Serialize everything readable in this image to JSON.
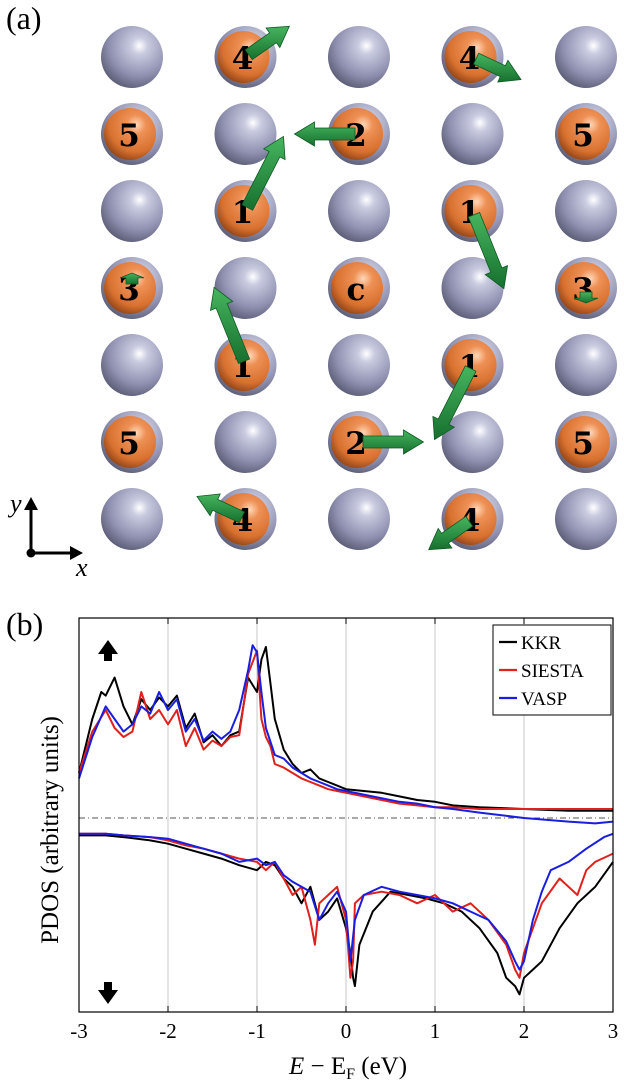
{
  "panel_a": {
    "label": "(a)",
    "axis_x": "x",
    "axis_y": "y",
    "grid_cols": 5,
    "grid_rows": 7,
    "colors": {
      "host_atom": "#8f90b0",
      "impurity_atom": "#dd7a3c",
      "moment_arrow": "#1f8a3a"
    },
    "sites": [
      {
        "col": 0,
        "row": 0,
        "type": "host",
        "label": ""
      },
      {
        "col": 1,
        "row": 0,
        "type": "impurity",
        "label": "4",
        "arrow_angle": 35,
        "arrow_len": 0.9
      },
      {
        "col": 2,
        "row": 0,
        "type": "host",
        "label": ""
      },
      {
        "col": 3,
        "row": 0,
        "type": "impurity",
        "label": "4",
        "arrow_angle": -25,
        "arrow_len": 0.9
      },
      {
        "col": 4,
        "row": 0,
        "type": "host",
        "label": ""
      },
      {
        "col": 0,
        "row": 1,
        "type": "impurity",
        "label": "5"
      },
      {
        "col": 1,
        "row": 1,
        "type": "host",
        "label": ""
      },
      {
        "col": 2,
        "row": 1,
        "type": "impurity",
        "label": "2",
        "arrow_angle": 180,
        "arrow_len": 1.1
      },
      {
        "col": 3,
        "row": 1,
        "type": "host",
        "label": ""
      },
      {
        "col": 4,
        "row": 1,
        "type": "impurity",
        "label": "5"
      },
      {
        "col": 0,
        "row": 2,
        "type": "host",
        "label": ""
      },
      {
        "col": 1,
        "row": 2,
        "type": "impurity",
        "label": "1",
        "arrow_angle": 63,
        "arrow_len": 1.45
      },
      {
        "col": 2,
        "row": 2,
        "type": "host",
        "label": ""
      },
      {
        "col": 3,
        "row": 2,
        "type": "impurity",
        "label": "1",
        "arrow_angle": -68,
        "arrow_len": 1.45
      },
      {
        "col": 4,
        "row": 2,
        "type": "host",
        "label": ""
      },
      {
        "col": 0,
        "row": 3,
        "type": "impurity",
        "label": "3",
        "arrow_angle": 90,
        "arrow_len": 0.2
      },
      {
        "col": 1,
        "row": 3,
        "type": "host",
        "label": ""
      },
      {
        "col": 2,
        "row": 3,
        "type": "impurity",
        "label": "c"
      },
      {
        "col": 3,
        "row": 3,
        "type": "host",
        "label": ""
      },
      {
        "col": 4,
        "row": 3,
        "type": "impurity",
        "label": "3",
        "arrow_angle": -90,
        "arrow_len": 0.2
      },
      {
        "col": 0,
        "row": 4,
        "type": "host",
        "label": ""
      },
      {
        "col": 1,
        "row": 4,
        "type": "impurity",
        "label": "1",
        "arrow_angle": 112,
        "arrow_len": 1.45
      },
      {
        "col": 2,
        "row": 4,
        "type": "host",
        "label": ""
      },
      {
        "col": 3,
        "row": 4,
        "type": "impurity",
        "label": "1",
        "arrow_angle": -117,
        "arrow_len": 1.45
      },
      {
        "col": 4,
        "row": 4,
        "type": "host",
        "label": ""
      },
      {
        "col": 0,
        "row": 5,
        "type": "impurity",
        "label": "5"
      },
      {
        "col": 1,
        "row": 5,
        "type": "host",
        "label": ""
      },
      {
        "col": 2,
        "row": 5,
        "type": "impurity",
        "label": "2",
        "arrow_angle": 0,
        "arrow_len": 1.1
      },
      {
        "col": 3,
        "row": 5,
        "type": "host",
        "label": ""
      },
      {
        "col": 4,
        "row": 5,
        "type": "impurity",
        "label": "5"
      },
      {
        "col": 0,
        "row": 6,
        "type": "host",
        "label": ""
      },
      {
        "col": 1,
        "row": 6,
        "type": "impurity",
        "label": "4",
        "arrow_angle": 155,
        "arrow_len": 0.9
      },
      {
        "col": 2,
        "row": 6,
        "type": "host",
        "label": ""
      },
      {
        "col": 3,
        "row": 6,
        "type": "impurity",
        "label": "4",
        "arrow_angle": -145,
        "arrow_len": 0.9
      },
      {
        "col": 4,
        "row": 6,
        "type": "host",
        "label": ""
      }
    ]
  },
  "chart_data": {
    "type": "line",
    "panel_label": "(b)",
    "xlabel": "E − E_F (eV)",
    "ylabel": "PDOS (arbitrary units)",
    "xlim": [
      -3,
      3
    ],
    "ylim": [
      -1.1,
      1.1
    ],
    "xticks": [
      "-3",
      "-2",
      "-1",
      "0",
      "1",
      "2",
      "3"
    ],
    "xtick_values": [
      -3,
      -2,
      -1,
      0,
      1,
      2,
      3
    ],
    "vertical_grid": true,
    "zero_line": "dash-dot",
    "legend_position": "top-right",
    "spin_markers": [
      "up (top-left)",
      "down (bottom-left)"
    ],
    "series": [
      {
        "name": "KKR",
        "color": "#000000",
        "x": [
          -3,
          -2.85,
          -2.75,
          -2.7,
          -2.6,
          -2.5,
          -2.4,
          -2.3,
          -2.2,
          -2.1,
          -2.0,
          -1.9,
          -1.8,
          -1.7,
          -1.6,
          -1.5,
          -1.4,
          -1.3,
          -1.2,
          -1.1,
          -1.0,
          -0.95,
          -0.9,
          -0.85,
          -0.8,
          -0.7,
          -0.6,
          -0.5,
          -0.4,
          -0.3,
          -0.2,
          -0.1,
          0.0,
          0.2,
          0.4,
          0.6,
          0.8,
          1.0,
          1.2,
          1.5,
          2.0,
          2.5,
          3.0
        ],
        "up": [
          0.25,
          0.55,
          0.7,
          0.68,
          0.78,
          0.62,
          0.52,
          0.66,
          0.6,
          0.67,
          0.62,
          0.68,
          0.5,
          0.58,
          0.42,
          0.46,
          0.4,
          0.46,
          0.48,
          0.78,
          0.7,
          0.88,
          0.95,
          0.75,
          0.55,
          0.38,
          0.3,
          0.25,
          0.27,
          0.22,
          0.2,
          0.18,
          0.16,
          0.15,
          0.14,
          0.12,
          0.1,
          0.09,
          0.07,
          0.06,
          0.05,
          0.04,
          0.04
        ],
        "dn_x": [
          -3,
          -2.7,
          -2.5,
          -2.2,
          -2.0,
          -1.8,
          -1.6,
          -1.4,
          -1.2,
          -1.0,
          -0.9,
          -0.8,
          -0.7,
          -0.6,
          -0.5,
          -0.4,
          -0.3,
          -0.2,
          -0.1,
          0.0,
          0.05,
          0.08,
          0.1,
          0.15,
          0.3,
          0.5,
          0.7,
          0.9,
          1.1,
          1.3,
          1.5,
          1.7,
          1.8,
          1.9,
          1.95,
          2.0,
          2.1,
          2.2,
          2.4,
          2.6,
          2.8,
          3.0
        ],
        "dn": [
          -0.04,
          -0.04,
          -0.05,
          -0.07,
          -0.09,
          -0.12,
          -0.15,
          -0.18,
          -0.22,
          -0.25,
          -0.2,
          -0.22,
          -0.3,
          -0.35,
          -0.45,
          -0.35,
          -0.55,
          -0.5,
          -0.42,
          -0.6,
          -0.75,
          -0.9,
          -0.95,
          -0.7,
          -0.5,
          -0.38,
          -0.4,
          -0.42,
          -0.45,
          -0.5,
          -0.6,
          -0.75,
          -0.9,
          -0.95,
          -1.0,
          -0.9,
          -0.85,
          -0.8,
          -0.6,
          -0.45,
          -0.35,
          -0.2
        ]
      },
      {
        "name": "SIESTA",
        "color": "#e0201c",
        "x": [
          -3,
          -2.85,
          -2.7,
          -2.6,
          -2.5,
          -2.4,
          -2.3,
          -2.2,
          -2.1,
          -2.0,
          -1.9,
          -1.8,
          -1.7,
          -1.6,
          -1.5,
          -1.4,
          -1.3,
          -1.2,
          -1.1,
          -1.0,
          -0.95,
          -0.9,
          -0.85,
          -0.8,
          -0.7,
          -0.6,
          -0.5,
          -0.4,
          -0.3,
          -0.2,
          -0.1,
          0.0,
          0.2,
          0.4,
          0.6,
          0.8,
          1.0,
          1.2,
          1.5,
          2.0,
          2.5,
          3.0
        ],
        "up": [
          0.25,
          0.48,
          0.6,
          0.5,
          0.45,
          0.48,
          0.7,
          0.55,
          0.6,
          0.52,
          0.6,
          0.4,
          0.5,
          0.38,
          0.43,
          0.4,
          0.45,
          0.46,
          0.8,
          0.93,
          0.55,
          0.45,
          0.4,
          0.3,
          0.28,
          0.25,
          0.22,
          0.2,
          0.18,
          0.16,
          0.15,
          0.14,
          0.12,
          0.1,
          0.08,
          0.07,
          0.06,
          0.06,
          0.05,
          0.05,
          0.05,
          0.05
        ],
        "dn_x": [
          -3,
          -2.7,
          -2.5,
          -2.2,
          -2.0,
          -1.8,
          -1.6,
          -1.4,
          -1.2,
          -1.0,
          -0.9,
          -0.8,
          -0.7,
          -0.6,
          -0.5,
          -0.4,
          -0.35,
          -0.3,
          -0.2,
          -0.1,
          0.0,
          0.05,
          0.08,
          0.1,
          0.2,
          0.4,
          0.6,
          0.8,
          1.0,
          1.2,
          1.4,
          1.6,
          1.8,
          1.9,
          1.95,
          2.0,
          2.1,
          2.2,
          2.4,
          2.6,
          2.7,
          2.8,
          3.0
        ],
        "dn": [
          -0.03,
          -0.03,
          -0.04,
          -0.05,
          -0.07,
          -0.1,
          -0.12,
          -0.15,
          -0.18,
          -0.2,
          -0.25,
          -0.2,
          -0.3,
          -0.4,
          -0.35,
          -0.55,
          -0.7,
          -0.45,
          -0.4,
          -0.35,
          -0.55,
          -0.9,
          -0.8,
          -0.45,
          -0.4,
          -0.38,
          -0.4,
          -0.45,
          -0.4,
          -0.5,
          -0.45,
          -0.55,
          -0.7,
          -0.85,
          -0.9,
          -0.75,
          -0.6,
          -0.45,
          -0.3,
          -0.4,
          -0.25,
          -0.2,
          -0.15
        ]
      },
      {
        "name": "VASP",
        "color": "#1a1ee0",
        "x": [
          -3,
          -2.85,
          -2.7,
          -2.6,
          -2.5,
          -2.4,
          -2.3,
          -2.2,
          -2.1,
          -2.0,
          -1.9,
          -1.8,
          -1.7,
          -1.6,
          -1.5,
          -1.4,
          -1.3,
          -1.2,
          -1.1,
          -1.05,
          -1.0,
          -0.95,
          -0.9,
          -0.8,
          -0.7,
          -0.6,
          -0.5,
          -0.4,
          -0.3,
          -0.2,
          -0.1,
          0.0,
          0.2,
          0.4,
          0.6,
          0.8,
          1.0,
          1.2,
          1.5,
          2.0,
          2.5,
          2.8,
          3.0
        ],
        "up": [
          0.22,
          0.45,
          0.62,
          0.55,
          0.48,
          0.52,
          0.62,
          0.58,
          0.7,
          0.6,
          0.66,
          0.48,
          0.55,
          0.43,
          0.48,
          0.44,
          0.48,
          0.6,
          0.82,
          0.96,
          0.92,
          0.7,
          0.5,
          0.35,
          0.33,
          0.28,
          0.25,
          0.22,
          0.2,
          0.18,
          0.16,
          0.15,
          0.13,
          0.11,
          0.09,
          0.08,
          0.06,
          0.05,
          0.03,
          0.0,
          -0.02,
          -0.03,
          -0.02
        ],
        "dn_x": [
          -3,
          -2.7,
          -2.5,
          -2.2,
          -2.0,
          -1.8,
          -1.6,
          -1.4,
          -1.2,
          -1.0,
          -0.9,
          -0.8,
          -0.7,
          -0.6,
          -0.5,
          -0.4,
          -0.3,
          -0.2,
          -0.1,
          0.0,
          0.05,
          0.1,
          0.2,
          0.4,
          0.6,
          0.8,
          1.0,
          1.2,
          1.4,
          1.6,
          1.8,
          1.9,
          1.95,
          2.0,
          2.1,
          2.2,
          2.3,
          2.5,
          2.7,
          2.9,
          3.0
        ],
        "dn": [
          -0.03,
          -0.03,
          -0.04,
          -0.05,
          -0.06,
          -0.09,
          -0.12,
          -0.15,
          -0.2,
          -0.18,
          -0.22,
          -0.2,
          -0.28,
          -0.32,
          -0.35,
          -0.38,
          -0.55,
          -0.45,
          -0.38,
          -0.5,
          -0.8,
          -0.55,
          -0.4,
          -0.35,
          -0.38,
          -0.4,
          -0.42,
          -0.45,
          -0.5,
          -0.55,
          -0.68,
          -0.8,
          -0.85,
          -0.8,
          -0.55,
          -0.38,
          -0.25,
          -0.2,
          -0.12,
          -0.05,
          -0.03
        ]
      }
    ]
  }
}
